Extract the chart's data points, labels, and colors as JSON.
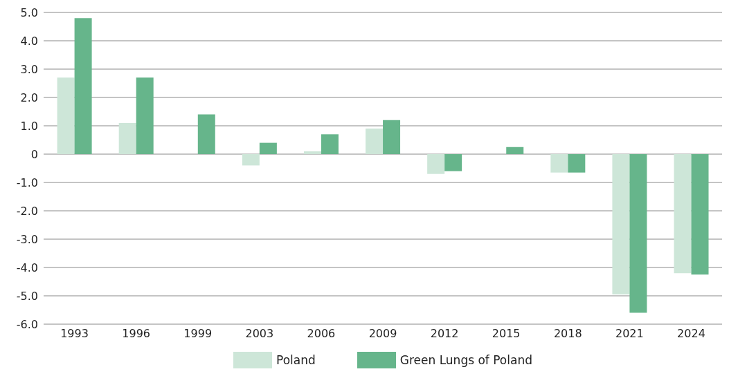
{
  "chart_data": {
    "type": "bar",
    "categories": [
      "1993",
      "1996",
      "1999",
      "2003",
      "2006",
      "2009",
      "2012",
      "2015",
      "2018",
      "2021",
      "2024"
    ],
    "series": [
      {
        "name": "Poland",
        "color": "#cde6d8",
        "values": [
          2.7,
          1.1,
          null,
          -0.4,
          0.1,
          0.9,
          -0.7,
          null,
          -0.65,
          -4.95,
          -4.2
        ]
      },
      {
        "name": "Green Lungs of Poland",
        "color": "#66b58b",
        "values": [
          4.8,
          2.7,
          1.4,
          0.4,
          0.7,
          1.2,
          -0.6,
          0.25,
          -0.65,
          -5.6,
          -4.25
        ]
      }
    ],
    "ylim": [
      -6,
      5
    ],
    "yticks": [
      {
        "value": -6,
        "label": "-6.0"
      },
      {
        "value": -5,
        "label": "-5.0"
      },
      {
        "value": -4,
        "label": "-4.0"
      },
      {
        "value": -3,
        "label": "-3.0"
      },
      {
        "value": -2,
        "label": "-2.0"
      },
      {
        "value": -1,
        "label": "-1.0"
      },
      0,
      {
        "value": 1,
        "label": "1.0"
      },
      {
        "value": 2,
        "label": "2.0"
      },
      {
        "value": 3,
        "label": "3.0"
      },
      {
        "value": 4,
        "label": "4.0"
      },
      {
        "value": 5,
        "label": "5.0"
      }
    ],
    "grid": "y",
    "legend": "bottom"
  }
}
